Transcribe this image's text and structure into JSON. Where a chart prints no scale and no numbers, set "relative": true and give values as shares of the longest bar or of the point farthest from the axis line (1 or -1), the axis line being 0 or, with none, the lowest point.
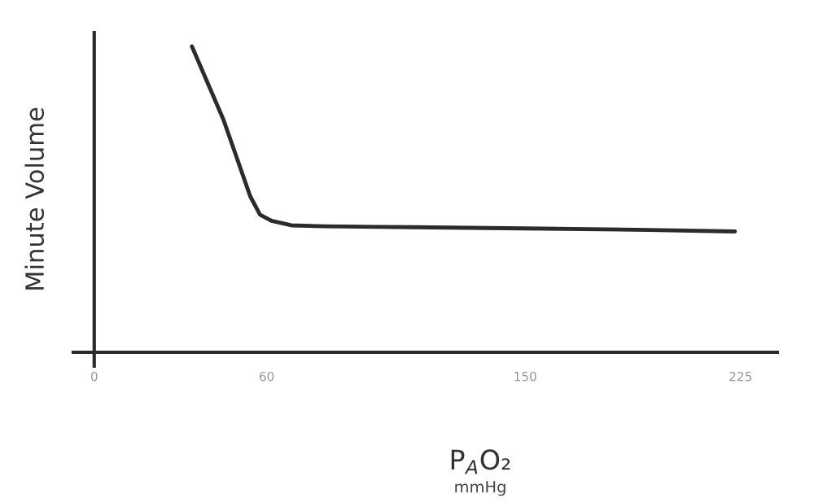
{
  "chart_data": {
    "type": "line",
    "relative": true,
    "xlabel": "P$_{A}$O₂",
    "ylabel": "Minute Volume",
    "annotations": [
      "mmHg"
    ],
    "xlim": [
      -7.3,
      237.8
    ],
    "xticks": [
      0,
      60,
      150,
      225
    ],
    "marker": "none",
    "line_style": "solid",
    "series": [
      {
        "color": "#2b2b2b",
        "x": [
          34,
          45,
          54.3,
          57.7,
          61.7,
          68.6,
          80,
          99.3,
          150,
          193,
          223
        ],
        "values": [
          1,
          0.76,
          0.51,
          0.45,
          0.43,
          0.415,
          0.412,
          0.41,
          0.405,
          0.4,
          0.395
        ]
      }
    ]
  }
}
